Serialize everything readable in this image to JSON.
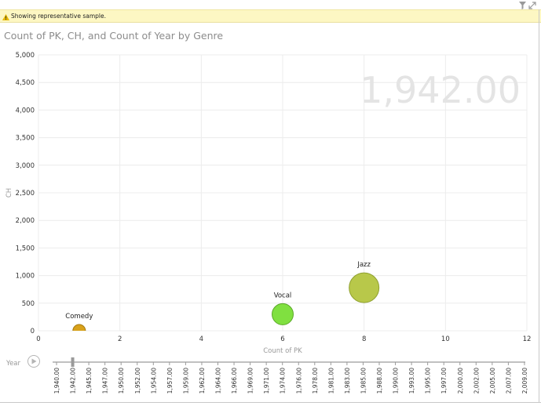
{
  "notice": {
    "text": "Showing representative sample.",
    "icon": "warning-icon",
    "icon_color": "#e6b800"
  },
  "toolbar": {
    "filter_icon": "filter-icon",
    "expand_icon": "expand-icon"
  },
  "play_axis": {
    "label": "Year",
    "play_icon": "play-icon",
    "current_value": "1,942.00",
    "current_index": 1,
    "ticks": [
      "1,940.00",
      "1,942.00",
      "1,945.00",
      "1,947.00",
      "1,950.00",
      "1,952.00",
      "1,954.00",
      "1,957.00",
      "1,959.00",
      "1,962.00",
      "1,964.00",
      "1,966.00",
      "1,969.00",
      "1,971.00",
      "1,974.00",
      "1,976.00",
      "1,978.00",
      "1,981.00",
      "1,983.00",
      "1,985.00",
      "1,988.00",
      "1,990.00",
      "1,993.00",
      "1,995.00",
      "1,997.00",
      "2,000.00",
      "2,002.00",
      "2,005.00",
      "2,007.00",
      "2,009.00"
    ]
  },
  "chart_data": {
    "type": "scatter",
    "title": "Count of PK, CH, and Count of Year by Genre",
    "xlabel": "Count of PK",
    "ylabel": "CH",
    "xlim": [
      0,
      12
    ],
    "ylim": [
      0,
      5000
    ],
    "x_ticks": [
      "0",
      "2",
      "4",
      "6",
      "8",
      "10",
      "12"
    ],
    "x_tick_values": [
      0,
      2,
      4,
      6,
      8,
      10,
      12
    ],
    "y_ticks": [
      "0",
      "500",
      "1,000",
      "1,500",
      "2,000",
      "2,500",
      "3,000",
      "3,500",
      "4,000",
      "4,500",
      "5,000"
    ],
    "y_tick_values": [
      0,
      500,
      1000,
      1500,
      2000,
      2500,
      3000,
      3500,
      4000,
      4500,
      5000
    ],
    "grid": true,
    "points": [
      {
        "label": "Comedy",
        "x": 1,
        "y": 0,
        "size": 1,
        "color": "#d9a21b",
        "stroke": "#a57a10"
      },
      {
        "label": "Vocal",
        "x": 6,
        "y": 300,
        "size": 2,
        "color": "#80e040",
        "stroke": "#5aa828"
      },
      {
        "label": "Jazz",
        "x": 8,
        "y": 780,
        "size": 3,
        "color": "#b8c84a",
        "stroke": "#8fa030"
      }
    ]
  }
}
